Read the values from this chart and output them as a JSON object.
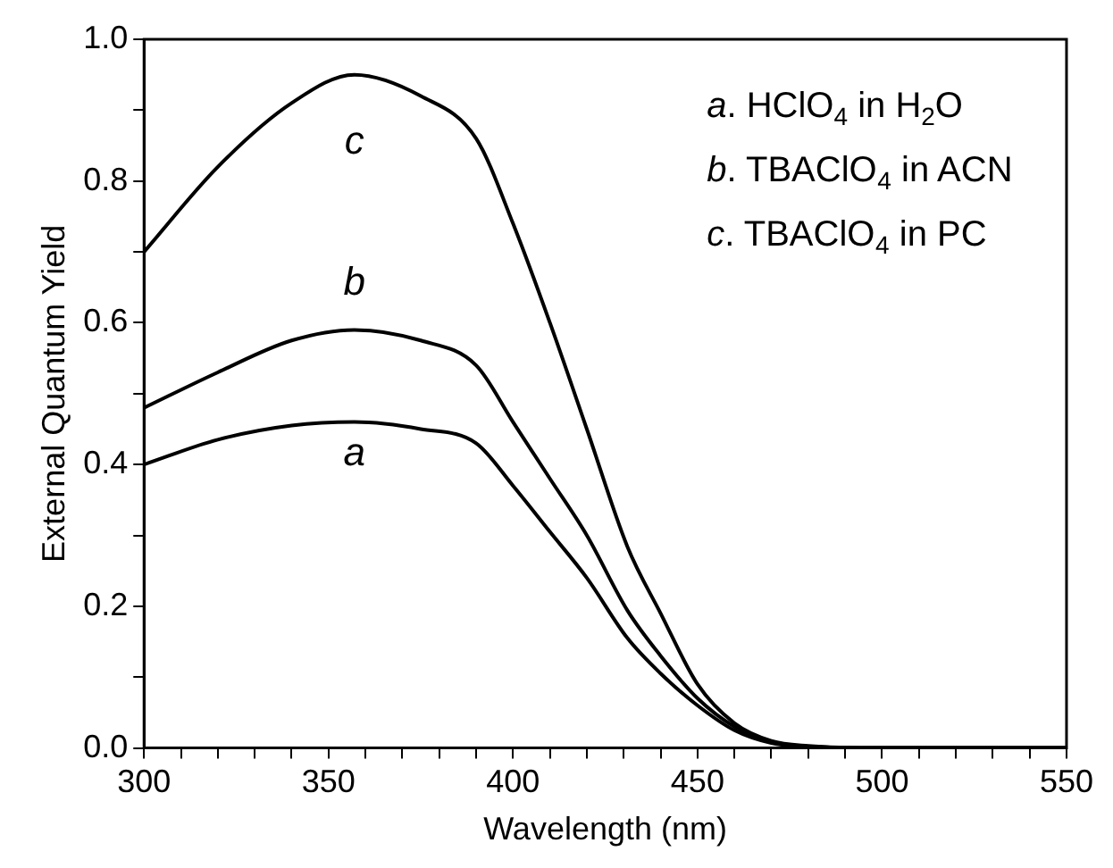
{
  "chart_data": {
    "type": "line",
    "xlabel": "Wavelength (nm)",
    "ylabel": "External Quantum Yield",
    "x": [
      300,
      320,
      340,
      357,
      375,
      390,
      400,
      410,
      420,
      431,
      440,
      450,
      460,
      470,
      480,
      500,
      550
    ],
    "series": [
      {
        "name": "a",
        "color": "#000000",
        "values": [
          0.4,
          0.435,
          0.455,
          0.46,
          0.45,
          0.43,
          0.37,
          0.305,
          0.24,
          0.155,
          0.105,
          0.06,
          0.025,
          0.007,
          0.002,
          0,
          0
        ]
      },
      {
        "name": "b",
        "color": "#000000",
        "values": [
          0.48,
          0.53,
          0.575,
          0.59,
          0.575,
          0.54,
          0.46,
          0.38,
          0.3,
          0.194,
          0.13,
          0.07,
          0.03,
          0.008,
          0.002,
          0,
          0
        ]
      },
      {
        "name": "c",
        "color": "#000000",
        "values": [
          0.7,
          0.82,
          0.91,
          0.95,
          0.92,
          0.86,
          0.74,
          0.6,
          0.45,
          0.284,
          0.19,
          0.09,
          0.035,
          0.01,
          0.003,
          0,
          0
        ]
      }
    ],
    "xlim": [
      300,
      550
    ],
    "xticks": [
      300,
      {
        "value": 310,
        "label": null
      },
      {
        "value": 320,
        "label": null
      },
      {
        "value": 330,
        "label": null
      },
      {
        "value": 340,
        "label": null
      },
      350,
      {
        "value": 360,
        "label": null
      },
      {
        "value": 370,
        "label": null
      },
      {
        "value": 380,
        "label": null
      },
      {
        "value": 390,
        "label": null
      },
      400,
      {
        "value": 410,
        "label": null
      },
      {
        "value": 420,
        "label": null
      },
      {
        "value": 430,
        "label": null
      },
      {
        "value": 440,
        "label": null
      },
      450,
      {
        "value": 460,
        "label": null
      },
      {
        "value": 470,
        "label": null
      },
      {
        "value": 480,
        "label": null
      },
      {
        "value": 490,
        "label": null
      },
      500,
      {
        "value": 510,
        "label": null
      },
      {
        "value": 520,
        "label": null
      },
      {
        "value": 530,
        "label": null
      },
      {
        "value": 540,
        "label": null
      },
      550
    ],
    "ylim": [
      0,
      1
    ],
    "yticks": [
      {
        "value": 0,
        "label": "0.0"
      },
      {
        "value": 0.1,
        "label": null
      },
      0.2,
      {
        "value": 0.3,
        "label": null
      },
      0.4,
      {
        "value": 0.5,
        "label": null
      },
      0.6,
      {
        "value": 0.7,
        "label": null
      },
      0.8,
      {
        "value": 0.9,
        "label": null
      },
      {
        "value": 1,
        "label": "1.0"
      }
    ],
    "grid": false,
    "legend": false,
    "marker": "none",
    "line_style": "solid",
    "annotations": [
      "a. HClO$_{4}$ in H$_{2}$O",
      "b. TBAClO$_{4}$ in ACN",
      "c. TBAClO$_{4}$ in PC"
    ]
  }
}
